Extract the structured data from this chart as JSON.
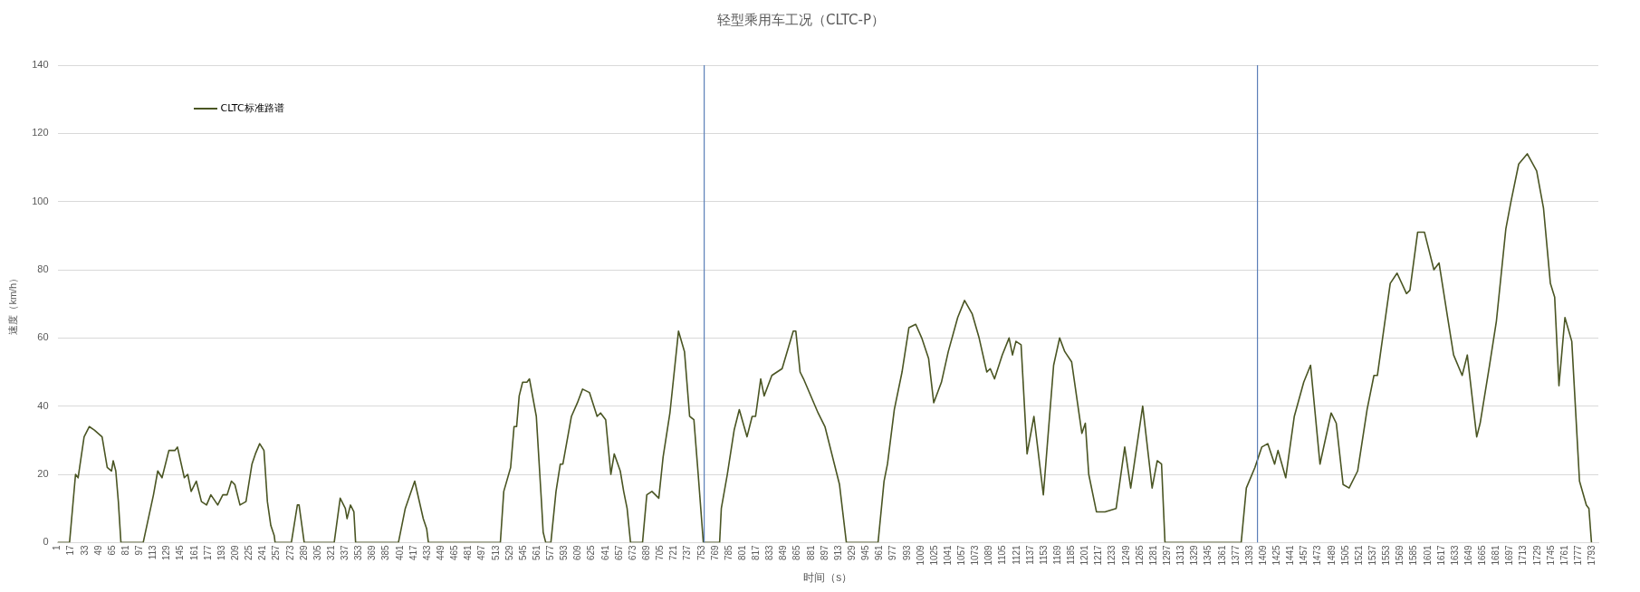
{
  "chart_data": {
    "type": "line",
    "title": "轻型乘用车工况（CLTC-P）",
    "xlabel": "时间（s）",
    "ylabel": "速度（km/h）",
    "xlim": [
      1,
      1800
    ],
    "xticks": [
      1,
      17,
      33,
      49,
      65,
      81,
      97,
      113,
      129,
      145,
      161,
      177,
      193,
      209,
      225,
      241,
      257,
      273,
      289,
      305,
      321,
      337,
      353,
      369,
      385,
      401,
      417,
      433,
      449,
      465,
      481,
      497,
      513,
      529,
      545,
      561,
      577,
      593,
      609,
      625,
      641,
      657,
      673,
      689,
      705,
      721,
      737,
      753,
      769,
      785,
      801,
      817,
      833,
      849,
      865,
      881,
      897,
      913,
      929,
      945,
      961,
      977,
      993,
      1009,
      1025,
      1041,
      1057,
      1073,
      1089,
      1105,
      1121,
      1137,
      1153,
      1169,
      1185,
      1201,
      1217,
      1233,
      1249,
      1265,
      1281,
      1297,
      1313,
      1329,
      1345,
      1361,
      1377,
      1393,
      1409,
      1425,
      1441,
      1457,
      1473,
      1489,
      1505,
      1521,
      1537,
      1553,
      1569,
      1585,
      1601,
      1617,
      1633,
      1649,
      1665,
      1681,
      1697,
      1713,
      1729,
      1745,
      1761,
      1777,
      1793
    ],
    "ylim": [
      0,
      140
    ],
    "yticks": [
      0,
      20,
      40,
      60,
      80,
      100,
      120,
      140
    ],
    "grid": "y",
    "legend": "top left",
    "ref_lines": [
      {
        "axis": "x",
        "value": 756,
        "color": "#5b7fb8"
      },
      {
        "axis": "x",
        "value": 1402,
        "color": "#5b7fb8"
      }
    ],
    "series": [
      {
        "name": "CLTC标准路谱",
        "color": "#4a5523",
        "x": [
          1,
          15,
          22,
          25,
          32,
          38,
          44,
          53,
          59,
          64,
          66,
          69,
          72,
          75,
          101,
          113,
          118,
          123,
          131,
          138,
          141,
          149,
          153,
          157,
          163,
          169,
          175,
          180,
          188,
          194,
          199,
          204,
          208,
          214,
          221,
          228,
          232,
          237,
          242,
          246,
          250,
          254,
          255,
          274,
          281,
          283,
          289,
          324,
          331,
          337,
          339,
          343,
          347,
          349,
          399,
          407,
          418,
          428,
          432,
          434,
          518,
          522,
          530,
          534,
          537,
          540,
          544,
          549,
          552,
          560,
          566,
          568,
          571,
          577,
          583,
          588,
          591,
          601,
          608,
          614,
          622,
          631,
          635,
          641,
          647,
          651,
          658,
          662,
          666,
          670,
          684,
          689,
          695,
          703,
          708,
          716,
          726,
          733,
          739,
          744,
          749,
          755,
          774,
          776,
          783,
          791,
          797,
          806,
          812,
          816,
          822,
          826,
          835,
          847,
          860,
          863,
          868,
          872,
          889,
          897,
          908,
          914,
          922,
          959,
          966,
          970,
          978,
          987,
          995,
          1003,
          1010,
          1018,
          1024,
          1033,
          1041,
          1052,
          1060,
          1069,
          1077,
          1086,
          1090,
          1095,
          1104,
          1112,
          1116,
          1120,
          1126,
          1133,
          1141,
          1152,
          1164,
          1171,
          1177,
          1185,
          1197,
          1201,
          1205,
          1214,
          1224,
          1237,
          1247,
          1254,
          1268,
          1279,
          1285,
          1290,
          1294,
          1383,
          1389,
          1399,
          1407,
          1414,
          1422,
          1426,
          1435,
          1445,
          1456,
          1464,
          1475,
          1488,
          1494,
          1502,
          1509,
          1519,
          1530,
          1538,
          1542,
          1557,
          1565,
          1576,
          1580,
          1589,
          1597,
          1608,
          1614,
          1624,
          1631,
          1641,
          1647,
          1658,
          1662,
          1673,
          1681,
          1692,
          1698,
          1707,
          1717,
          1728,
          1736,
          1744,
          1749,
          1754,
          1761,
          1769,
          1778,
          1786,
          1789,
          1792
        ],
        "values": [
          0,
          0,
          20,
          19,
          31,
          34,
          33,
          31,
          22,
          21,
          24,
          21,
          12,
          0,
          0,
          14,
          21,
          19,
          27,
          27,
          28,
          19,
          20,
          15,
          18,
          12,
          11,
          14,
          11,
          14,
          14,
          18,
          17,
          11,
          12,
          23,
          26,
          29,
          27,
          12,
          5,
          2,
          0,
          0,
          11,
          11,
          0,
          0,
          13,
          10,
          7,
          11,
          9,
          0,
          0,
          10,
          18,
          7,
          4,
          0,
          0,
          15,
          22,
          34,
          34,
          43,
          47,
          47,
          48,
          37,
          12,
          3,
          0,
          0,
          15,
          23,
          23,
          37,
          41,
          45,
          44,
          37,
          38,
          36,
          20,
          26,
          21,
          15,
          10,
          0,
          0,
          14,
          15,
          13,
          25,
          38,
          62,
          56,
          37,
          36,
          20,
          0,
          0,
          10,
          20,
          33,
          39,
          31,
          37,
          37,
          48,
          43,
          49,
          51,
          62,
          62,
          50,
          48,
          38,
          34,
          23,
          17,
          0,
          0,
          18,
          23,
          39,
          50,
          63,
          64,
          60,
          54,
          41,
          47,
          56,
          66,
          71,
          67,
          60,
          50,
          51,
          48,
          55,
          60,
          55,
          59,
          58,
          26,
          37,
          14,
          52,
          60,
          56,
          53,
          32,
          35,
          20,
          9,
          9,
          10,
          28,
          16,
          40,
          16,
          24,
          23,
          0,
          0,
          16,
          22,
          28,
          29,
          23,
          27,
          19,
          37,
          47,
          52,
          23,
          38,
          35,
          17,
          16,
          21,
          39,
          49,
          49,
          76,
          79,
          73,
          74,
          91,
          91,
          80,
          82,
          66,
          55,
          49,
          55,
          31,
          35,
          52,
          65,
          92,
          100,
          111,
          114,
          109,
          98,
          76,
          72,
          46,
          66,
          59,
          18,
          11,
          10,
          0
        ]
      }
    ]
  }
}
